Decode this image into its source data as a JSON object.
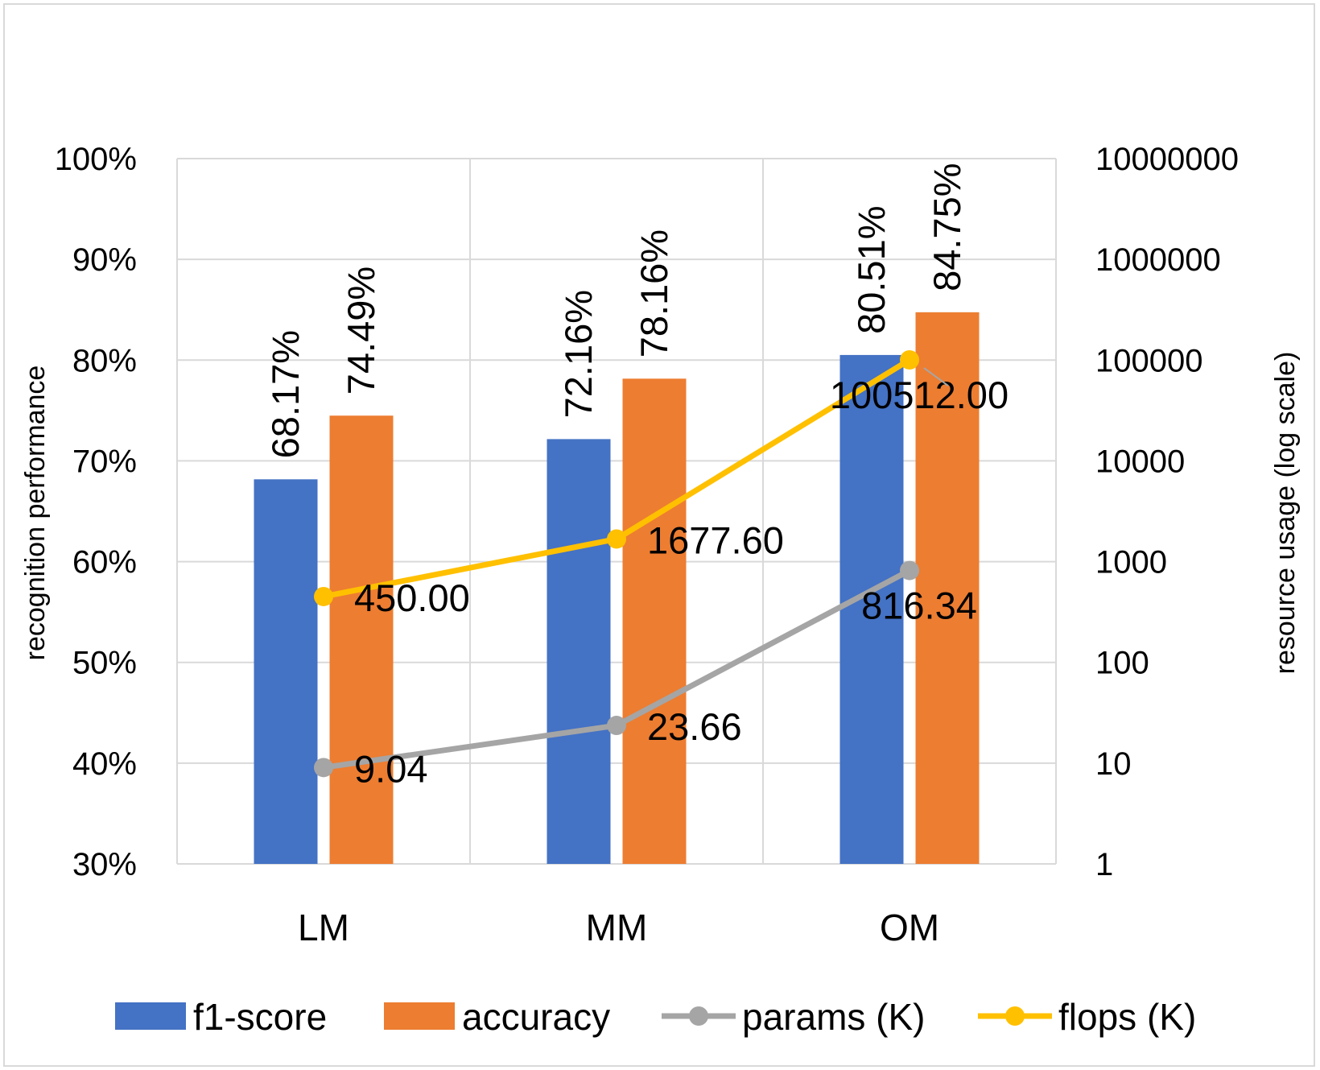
{
  "chart_data": {
    "type": "bar+line",
    "categories": [
      "LM",
      "MM",
      "OM"
    ],
    "series": [
      {
        "name": "f1-score",
        "kind": "bar",
        "axis": "left",
        "color": "#4472C4",
        "values": [
          68.17,
          72.16,
          80.51
        ],
        "labels": [
          "68.17%",
          "72.16%",
          "80.51%"
        ]
      },
      {
        "name": "accuracy",
        "kind": "bar",
        "axis": "left",
        "color": "#ED7D31",
        "values": [
          74.49,
          78.16,
          84.75
        ],
        "labels": [
          "74.49%",
          "78.16%",
          "84.75%"
        ]
      },
      {
        "name": "params (K)",
        "kind": "line",
        "axis": "right",
        "color": "#A5A5A5",
        "values": [
          9.04,
          23.66,
          816.34
        ],
        "labels": [
          "9.04",
          "23.66",
          "816.34"
        ]
      },
      {
        "name": "flops (K)",
        "kind": "line",
        "axis": "right",
        "color": "#FFC000",
        "values": [
          450.0,
          1677.6,
          100512.0
        ],
        "labels": [
          "450.00",
          "1677.60",
          "100512.00"
        ]
      }
    ],
    "y_left": {
      "title": "recognition performance",
      "min": 30,
      "max": 100,
      "step": 10,
      "ticks": [
        "30%",
        "40%",
        "50%",
        "60%",
        "70%",
        "80%",
        "90%",
        "100%"
      ]
    },
    "y_right": {
      "title": "resource usage  (log scale)",
      "scale": "log",
      "min": 1,
      "max": 10000000,
      "ticks": [
        "1",
        "10",
        "100",
        "1000",
        "10000",
        "100000",
        "1000000",
        "10000000"
      ]
    },
    "legend": {
      "position": "bottom",
      "entries": [
        "f1-score",
        "accuracy",
        "params (K)",
        "flops (K)"
      ]
    },
    "grid": true
  }
}
